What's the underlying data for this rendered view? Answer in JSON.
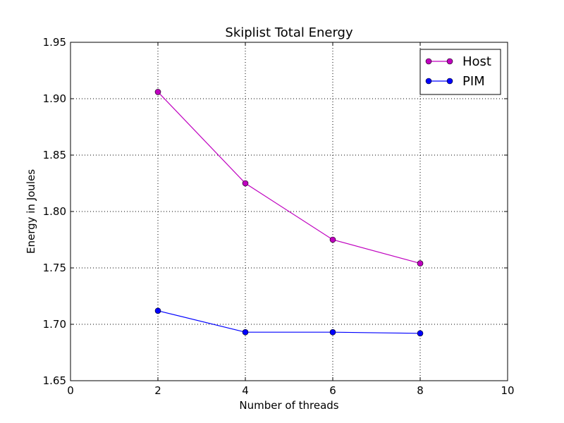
{
  "chart_data": {
    "type": "line",
    "title": "Skiplist Total Energy",
    "xlabel": "Number of threads",
    "ylabel": "Energy in Joules",
    "xlim": [
      0,
      10
    ],
    "ylim": [
      1.65,
      1.95
    ],
    "xticks": [
      0,
      2,
      4,
      6,
      8,
      10
    ],
    "xtick_labels": [
      "0",
      "2",
      "4",
      "6",
      "8",
      "10"
    ],
    "yticks": [
      1.65,
      1.7,
      1.75,
      1.8,
      1.85,
      1.9,
      1.95
    ],
    "ytick_labels": [
      "1.65",
      "1.70",
      "1.75",
      "1.80",
      "1.85",
      "1.90",
      "1.95"
    ],
    "grid": true,
    "legend_position": "top-right",
    "x": [
      2,
      4,
      6,
      8
    ],
    "series": [
      {
        "name": "Host",
        "color": "#bf00bf",
        "marker": "circle",
        "values": [
          1.906,
          1.825,
          1.775,
          1.754
        ]
      },
      {
        "name": "PIM",
        "color": "#0000ff",
        "marker": "circle",
        "values": [
          1.712,
          1.693,
          1.693,
          1.692
        ]
      }
    ]
  }
}
